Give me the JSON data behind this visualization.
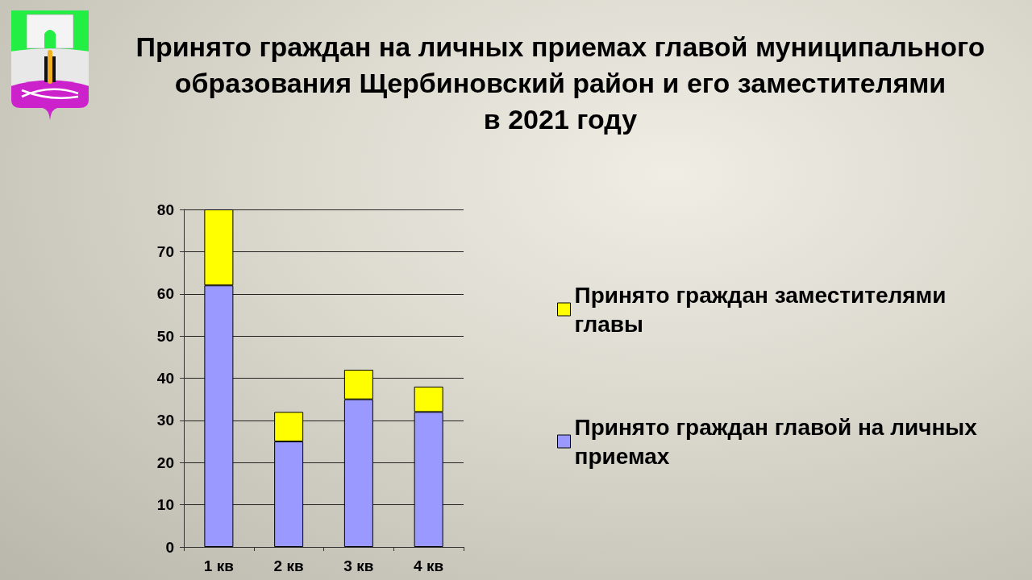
{
  "chart_data": {
    "type": "bar",
    "title": "Принято граждан на личных приемах главой муниципального образования Щербиновский район и его заместителями в 2021 году",
    "categories": [
      "1 кв",
      "2 кв",
      "3 кв",
      "4 кв"
    ],
    "stacked": true,
    "series": [
      {
        "name": "Принято граждан главой на личных приемах",
        "color": "#9999ff",
        "values": [
          62,
          25,
          35,
          32
        ]
      },
      {
        "name": "Принято граждан заместителями главы",
        "color": "#ffff00",
        "values": [
          18,
          7,
          7,
          6
        ]
      }
    ],
    "ylim": [
      0,
      80
    ],
    "yticks": [
      0,
      10,
      20,
      30,
      40,
      50,
      60,
      70,
      80
    ],
    "grid": "y",
    "legend": "right"
  }
}
